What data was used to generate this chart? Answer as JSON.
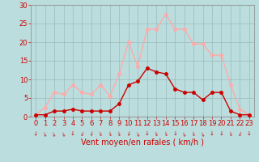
{
  "hours": [
    0,
    1,
    2,
    3,
    4,
    5,
    6,
    7,
    8,
    9,
    10,
    11,
    12,
    13,
    14,
    15,
    16,
    17,
    18,
    19,
    20,
    21,
    22,
    23
  ],
  "wind_avg": [
    0.5,
    0.5,
    1.5,
    1.5,
    2.0,
    1.5,
    1.5,
    1.5,
    1.5,
    3.5,
    8.5,
    9.5,
    13.0,
    12.0,
    11.5,
    7.5,
    6.5,
    6.5,
    4.5,
    6.5,
    6.5,
    1.5,
    0.5,
    0.5
  ],
  "wind_gust": [
    0.5,
    2.5,
    6.5,
    6.0,
    8.5,
    6.5,
    6.0,
    8.5,
    5.5,
    11.5,
    20.0,
    13.5,
    23.5,
    23.5,
    27.5,
    23.5,
    23.5,
    19.5,
    19.5,
    16.5,
    16.5,
    8.5,
    2.0,
    0.5
  ],
  "color_avg": "#cc0000",
  "color_gust": "#ffaaaa",
  "bg_color": "#bbdddd",
  "grid_color": "#99bbbb",
  "axis_color": "#cc0000",
  "spine_color": "#888888",
  "ylim": [
    0,
    30
  ],
  "yticks": [
    0,
    5,
    10,
    15,
    20,
    25,
    30
  ],
  "xlabel": "Vent moyen/en rafales ( km/h )",
  "xlabel_fontsize": 7,
  "tick_fontsize": 6,
  "marker_size": 2.5,
  "line_width": 1.0
}
